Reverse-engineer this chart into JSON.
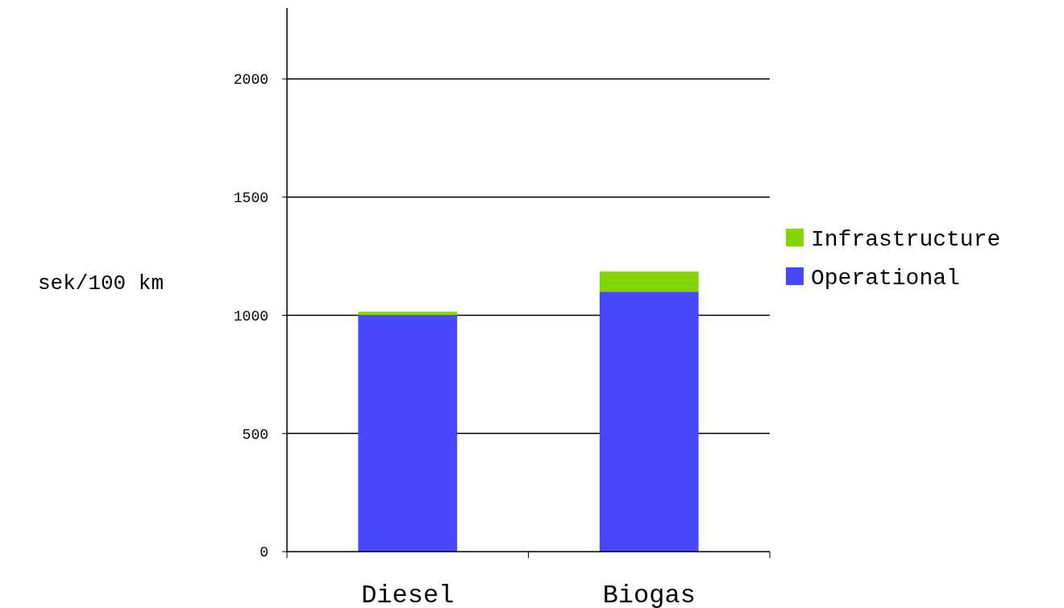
{
  "chart_data": {
    "type": "bar",
    "stacked": true,
    "ylabel": "sek/100 km",
    "categories": [
      "Diesel",
      "Biogas"
    ],
    "series": [
      {
        "name": "Operational",
        "color": "#4848ff",
        "values": [
          1000,
          1100
        ]
      },
      {
        "name": "Infrastructure",
        "color": "#84d600",
        "values": [
          15,
          85
        ]
      }
    ],
    "ylim": [
      0,
      2300
    ],
    "yticks": [
      0,
      500,
      1000,
      1500,
      2000
    ],
    "grid": "y",
    "legend": "right"
  }
}
